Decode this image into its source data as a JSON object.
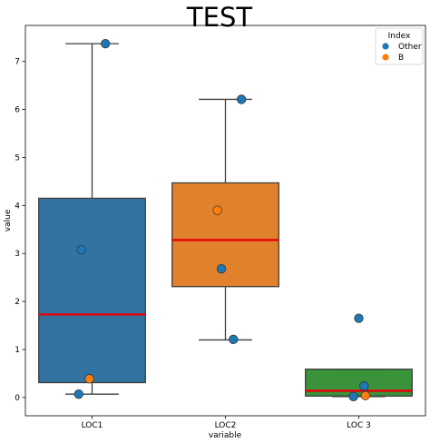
{
  "chart_data": {
    "type": "box",
    "title": "TEST",
    "xlabel": "variable",
    "ylabel": "value",
    "ylim": [
      -0.38,
      7.75
    ],
    "yticks": [
      0,
      1,
      2,
      3,
      4,
      5,
      6,
      7
    ],
    "categories": [
      "LOC1",
      "LOC2",
      "LOC 3"
    ],
    "boxes": [
      {
        "category": "LOC1",
        "color": "#3274a1",
        "whisker_low": 0.07,
        "q1": 0.31,
        "median": 1.73,
        "q3": 4.15,
        "whisker_high": 7.37
      },
      {
        "category": "LOC2",
        "color": "#e1812c",
        "whisker_low": 1.2,
        "q1": 2.31,
        "median": 3.28,
        "q3": 4.47,
        "whisker_high": 6.21
      },
      {
        "category": "LOC 3",
        "color": "#3a923a",
        "whisker_low": 0.02,
        "q1": 0.03,
        "median": 0.14,
        "q3": 0.59,
        "whisker_high": 0.59
      }
    ],
    "median_color": "#e8000b",
    "series": [
      {
        "name": "Other",
        "color": "#1f77b4",
        "points": [
          {
            "category": "LOC1",
            "y": 7.37,
            "offset": 0.1
          },
          {
            "category": "LOC1",
            "y": 3.08,
            "offset": -0.08
          },
          {
            "category": "LOC1",
            "y": 0.07,
            "offset": -0.1
          },
          {
            "category": "LOC2",
            "y": 6.21,
            "offset": 0.12
          },
          {
            "category": "LOC2",
            "y": 2.68,
            "offset": -0.03
          },
          {
            "category": "LOC2",
            "y": 1.21,
            "offset": 0.06
          },
          {
            "category": "LOC 3",
            "y": 1.65,
            "offset": 0.0
          },
          {
            "category": "LOC 3",
            "y": 0.24,
            "offset": 0.04
          },
          {
            "category": "LOC 3",
            "y": 0.02,
            "offset": -0.04
          }
        ]
      },
      {
        "name": "B",
        "color": "#ff7f0e",
        "points": [
          {
            "category": "LOC1",
            "y": 0.39,
            "offset": -0.02
          },
          {
            "category": "LOC2",
            "y": 3.9,
            "offset": -0.06
          },
          {
            "category": "LOC 3",
            "y": 0.04,
            "offset": 0.05
          }
        ]
      }
    ],
    "legend": {
      "title": "Index",
      "placement": "top-right"
    },
    "grid": false
  }
}
